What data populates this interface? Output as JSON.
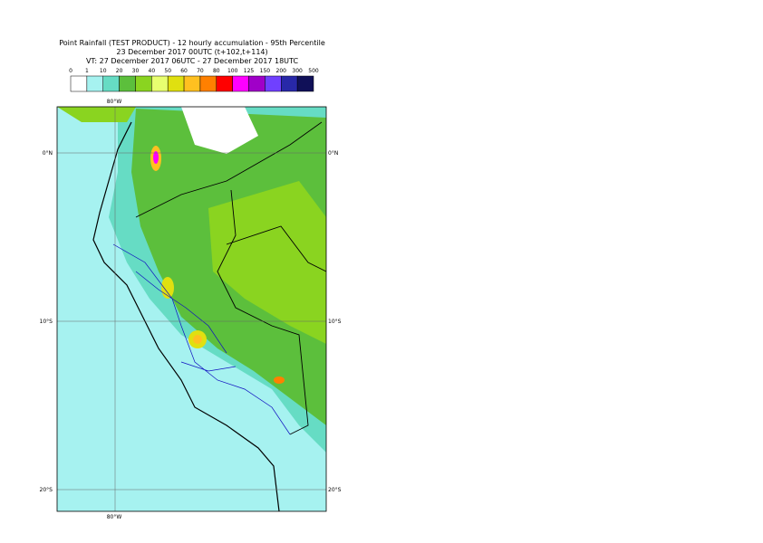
{
  "title": [
    "Point Rainfall (TEST PRODUCT) - 12 hourly accumulation - 95th Percentile",
    "23 December 2017 00UTC (t+102,t+114)",
    "VT: 27 December 2017 06UTC - 27 December 2017 18UTC"
  ],
  "legend": {
    "ticks": [
      "0",
      "1",
      "10",
      "20",
      "30",
      "40",
      "50",
      "60",
      "70",
      "80",
      "100",
      "125",
      "150",
      "200",
      "300",
      "500"
    ],
    "colors": [
      "#ffffff",
      "#a6f2f0",
      "#66dcc4",
      "#5cbf3c",
      "#8ad420",
      "#e8ff70",
      "#e0e010",
      "#ffc020",
      "#ff8000",
      "#ff0000",
      "#ff00ff",
      "#a000c8",
      "#7040ff",
      "#2828a8",
      "#101058"
    ]
  },
  "map": {
    "lon_top": "80°W",
    "lon_bottom": "80°W",
    "lat_left": [
      "0°N",
      "10°S",
      "20°S"
    ],
    "lat_right": [
      "0°N",
      "10°S",
      "20°S"
    ]
  }
}
